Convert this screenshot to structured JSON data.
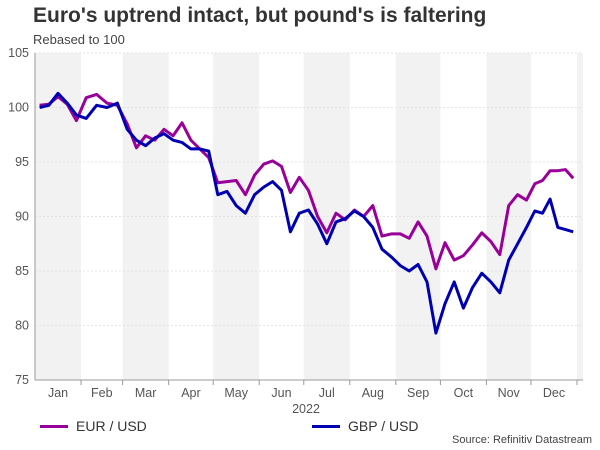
{
  "chart_data": {
    "type": "line",
    "title": "Euro's uptrend intact, but pound's is faltering",
    "subtitle": "Rebased to 100",
    "xlabel": "2022",
    "ylabel": "",
    "ylim": [
      75,
      105
    ],
    "yticks": [
      "75",
      "80",
      "85",
      "90",
      "95",
      "100",
      "105"
    ],
    "months": [
      "Jan",
      "Feb",
      "Mar",
      "Apr",
      "May",
      "Jun",
      "Jul",
      "Aug",
      "Sep",
      "Oct",
      "Nov",
      "Dec"
    ],
    "month_days": [
      31,
      28,
      31,
      30,
      31,
      30,
      31,
      31,
      30,
      31,
      30,
      31
    ],
    "grid": true,
    "legend_position": "bottom",
    "source": "Source: Refinitiv Datastream",
    "series": [
      {
        "name": "EUR / USD",
        "color": "#990099",
        "monthly_values": [
          [
            100.2,
            100.3,
            101.0,
            100.3,
            98.8
          ],
          [
            100.9,
            101.2,
            100.4,
            100.2
          ],
          [
            98.5,
            96.3,
            97.4,
            97.0,
            98.0
          ],
          [
            97.4,
            98.6,
            97.0,
            96.2,
            95.4
          ],
          [
            93.1,
            93.2,
            93.3,
            92.0,
            93.8
          ],
          [
            94.8,
            95.1,
            94.6,
            92.2,
            93.6
          ],
          [
            92.4,
            90.0,
            88.5,
            90.3,
            89.7
          ],
          [
            90.6,
            90.0,
            91.0,
            88.2,
            88.4
          ],
          [
            88.4,
            88.0,
            89.5,
            88.2,
            85.2
          ],
          [
            87.6,
            86.0,
            86.4,
            87.4,
            88.5
          ],
          [
            87.7,
            86.5,
            91.0,
            92.0,
            91.5
          ],
          [
            93.0,
            93.3,
            94.2,
            94.2,
            94.3,
            93.5
          ]
        ]
      },
      {
        "name": "GBP / USD",
        "color": "#0000b3",
        "monthly_values": [
          [
            100.0,
            100.2,
            101.3,
            100.4,
            99.3
          ],
          [
            99.0,
            100.2,
            100.0,
            100.4
          ],
          [
            98.0,
            97.0,
            96.5,
            97.2,
            97.6
          ],
          [
            97.0,
            96.8,
            96.2,
            96.2,
            96.0
          ],
          [
            92.0,
            92.3,
            91.0,
            90.3,
            92.0
          ],
          [
            92.7,
            93.2,
            92.4,
            88.6,
            90.3
          ],
          [
            90.6,
            89.3,
            87.5,
            89.5,
            89.8
          ],
          [
            90.5,
            90.0,
            89.0,
            87.0,
            86.3
          ],
          [
            85.5,
            85.0,
            85.6,
            84.0,
            79.3
          ],
          [
            82.0,
            84.0,
            81.6,
            83.5,
            84.8
          ],
          [
            84.0,
            83.0,
            86.0,
            87.5,
            89.0
          ],
          [
            90.5,
            90.3,
            91.6,
            89.0,
            88.8,
            88.6
          ]
        ]
      }
    ]
  }
}
